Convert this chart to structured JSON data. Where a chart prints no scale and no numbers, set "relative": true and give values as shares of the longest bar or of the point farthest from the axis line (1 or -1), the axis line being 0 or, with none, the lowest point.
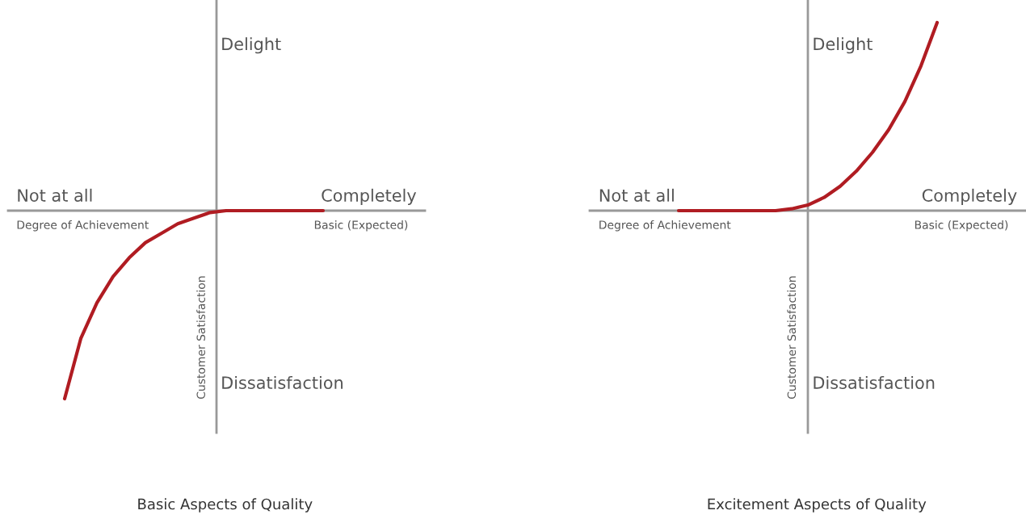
{
  "chart_data": [
    {
      "type": "line",
      "relative": true,
      "title": "Basic Aspects of Quality",
      "xlabel": "Degree of Achievement",
      "ylabel": "Customer Satisfaction",
      "annotations": [
        "Delight",
        "Not at all",
        "Completely",
        "Basic (Expected)",
        "Dissatisfaction"
      ],
      "categories": [
        null,
        null,
        null,
        null,
        null,
        null,
        null,
        null,
        null,
        null,
        null,
        null,
        null,
        null,
        null,
        null,
        null
      ],
      "series": [
        {
          "color": "#b01c22",
          "values": [
            -1,
            -0.68,
            -0.49,
            -0.35,
            -0.25,
            -0.17,
            -0.12,
            -0.07,
            -0.04,
            -0.01,
            0,
            0,
            0,
            0,
            0,
            0,
            0
          ]
        }
      ]
    },
    {
      "type": "line",
      "relative": true,
      "title": "Excitement Aspects of Quality",
      "xlabel": "Degree of Achievement",
      "ylabel": "Customer Satisfaction",
      "annotations": [
        "Delight",
        "Not at all",
        "Completely",
        "Basic (Expected)",
        "Dissatisfaction"
      ],
      "categories": [
        null,
        null,
        null,
        null,
        null,
        null,
        null,
        null,
        null,
        null,
        null,
        null,
        null,
        null,
        null,
        null,
        null
      ],
      "series": [
        {
          "color": "#b01c22",
          "values": [
            0,
            0,
            0,
            0,
            0,
            0,
            0,
            0.01,
            0.03,
            0.07,
            0.13,
            0.21,
            0.31,
            0.43,
            0.58,
            0.77,
            1
          ]
        }
      ]
    }
  ]
}
